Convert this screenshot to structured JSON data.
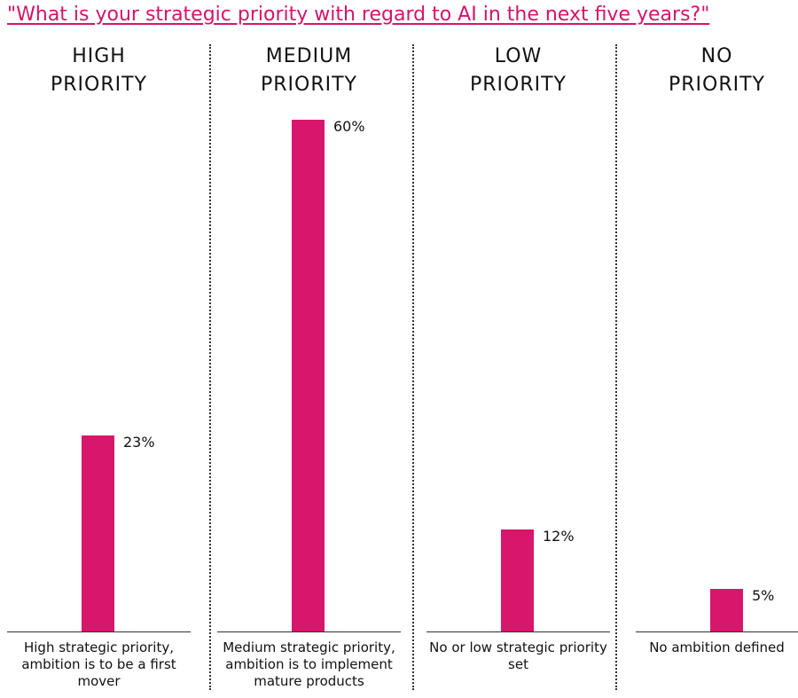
{
  "chart_data": {
    "type": "bar",
    "title": "\"What is your strategic priority with regard to AI in the next five years?\"",
    "categories": [
      "HIGH PRIORITY",
      "MEDIUM PRIORITY",
      "LOW PRIORITY",
      "NO PRIORITY"
    ],
    "category_lines": [
      [
        "HIGH",
        "PRIORITY"
      ],
      [
        "MEDIUM",
        "PRIORITY"
      ],
      [
        "LOW",
        "PRIORITY"
      ],
      [
        "NO",
        "PRIORITY"
      ]
    ],
    "descriptions": [
      "High strategic priority, ambition is to be a first mover",
      "Medium strategic priority, ambition is to implement mature products",
      "No or low strategic priority set",
      "No ambition defined"
    ],
    "values": [
      23,
      60,
      12,
      5
    ],
    "value_labels": [
      "23%",
      "60%",
      "12%",
      "5%"
    ],
    "ylim": [
      0,
      60
    ],
    "grid": false,
    "bar_color": "#d8166b",
    "title_color": "#d4146b"
  }
}
